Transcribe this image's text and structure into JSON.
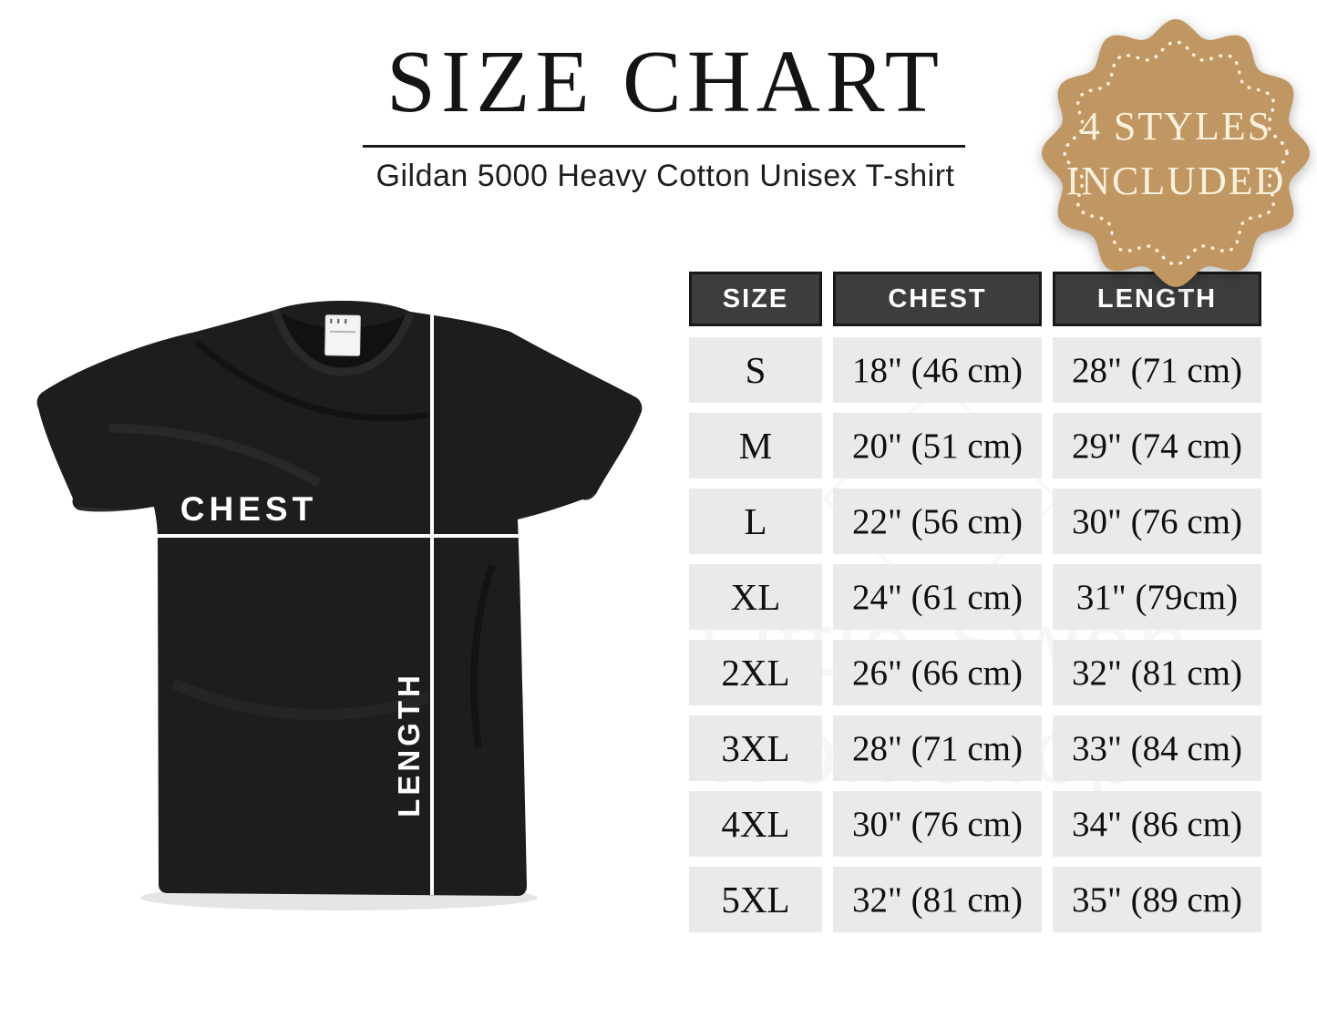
{
  "chart_data": {
    "type": "table",
    "title": "SIZE CHART",
    "subtitle": "Gildan 5000 Heavy Cotton Unisex T-shirt",
    "columns": [
      "SIZE",
      "CHEST",
      "LENGTH"
    ],
    "rows": [
      [
        "S",
        "18\" (46 cm)",
        "28\" (71 cm)"
      ],
      [
        "M",
        "20\" (51 cm)",
        "29\" (74 cm)"
      ],
      [
        "L",
        "22\" (56 cm)",
        "30\" (76 cm)"
      ],
      [
        "XL",
        "24\" (61 cm)",
        "31\" (79cm)"
      ],
      [
        "2XL",
        "26\" (66 cm)",
        "32\" (81 cm)"
      ],
      [
        "3XL",
        "28\" (71 cm)",
        "33\" (84 cm)"
      ],
      [
        "4XL",
        "30\" (76 cm)",
        "34\" (86 cm)"
      ],
      [
        "5XL",
        "32\" (81 cm)",
        "35\" (89 cm)"
      ]
    ]
  },
  "badge": {
    "line1": "4 STYLES",
    "line2": "INCLUDED",
    "fill_color": "#c09663",
    "text_color": "#f9f1dc"
  },
  "shirt": {
    "chest_label": "CHEST",
    "length_label": "LENGTH",
    "color": "#1e1c1d"
  },
  "watermark": {
    "line1": "Little Swan",
    "line2": "Workshop"
  },
  "colors": {
    "header_cell_bg": "#3d3d3d",
    "body_cell_bg": "#eaeae8",
    "title_color": "#141414",
    "measure_line": "#ffffff"
  }
}
